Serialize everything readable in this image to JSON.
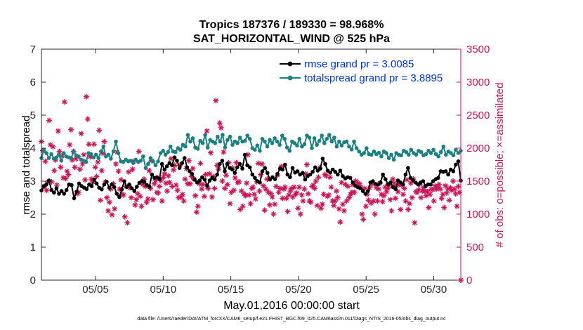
{
  "chart_data": {
    "type": "line",
    "title": "Tropics 187376 / 189330 = 98.968%",
    "subtitle": "SAT_HORIZONTAL_WIND @ 525 hPa",
    "xlabel": "May.01,2016 00:00:00 start",
    "ylabel_left": "rmse and totalspread",
    "ylabel_right": "# of obs: o=possible; ×=assimilated",
    "footer": "data file: /Users/raeder/DAI/ATM_forcXX/CAM6_setup/f.e21.FHIST_BGC.f09_025.CAM6assim.011/Diags_NTrS_2016-05/obs_diag_output.nc",
    "xlim": [
      1.0,
      32.0
    ],
    "ylim_left": [
      0,
      7
    ],
    "ylim_right": [
      0,
      3500
    ],
    "x_ticks": [
      5,
      10,
      15,
      20,
      25,
      30
    ],
    "x_tick_labels": [
      "05/05",
      "05/10",
      "05/15",
      "05/20",
      "05/25",
      "05/30"
    ],
    "y_ticks_left": [
      0,
      1,
      2,
      3,
      4,
      5,
      6,
      7
    ],
    "y_ticks_right": [
      0,
      500,
      1000,
      1500,
      2000,
      2500,
      3000,
      3500
    ],
    "legend_position": "top-right",
    "colors": {
      "rmse": "#000000",
      "spread": "#1a8080",
      "obs": "#cc1455",
      "legend_text": "#0033dd",
      "right_axis": "#cc1455"
    },
    "series": [
      {
        "name": "rmse grand pr = 3.0085",
        "axis": "left",
        "values": [
          2.72,
          2.85,
          2.9,
          3.02,
          2.73,
          2.65,
          2.78,
          2.62,
          2.7,
          2.62,
          2.73,
          2.9,
          2.88,
          2.48,
          2.68,
          2.93,
          2.85,
          2.8,
          2.76,
          2.9,
          2.85,
          3.05,
          2.93,
          2.8,
          2.75,
          2.9,
          2.98,
          2.8,
          2.9,
          2.82,
          2.62,
          2.52,
          2.75,
          3.0,
          2.82,
          2.9,
          2.78,
          2.7,
          2.83,
          2.95,
          3.0,
          2.98,
          2.88,
          2.83,
          3.2,
          3.1,
          3.12,
          3.06,
          3.52,
          3.35,
          3.45,
          3.55,
          3.48,
          3.72,
          3.62,
          3.4,
          3.55,
          3.7,
          3.42,
          3.3,
          3.22,
          3.05,
          2.96,
          3.02,
          3.12,
          3.05,
          2.86,
          3.02,
          3.1,
          3.05,
          3.2,
          3.52,
          3.62,
          3.3,
          3.52,
          3.4,
          3.35,
          3.25,
          3.42,
          3.52,
          3.38,
          3.8,
          3.48,
          3.42,
          3.2,
          3.1,
          3.0,
          2.96,
          3.3,
          3.4,
          3.25,
          3.05,
          3.12,
          3.06,
          3.22,
          3.38,
          3.35,
          3.5,
          3.2,
          3.12,
          3.4,
          3.26,
          3.3,
          3.2,
          3.25,
          3.05,
          3.15,
          3.2,
          3.28,
          3.42,
          3.32,
          3.38,
          3.68,
          3.52,
          3.32,
          3.26,
          3.35,
          3.28,
          3.2,
          3.32,
          3.15,
          3.08,
          3.12,
          3.1,
          2.96,
          2.86,
          2.82,
          2.78,
          2.7,
          2.62,
          2.7,
          2.96,
          3.0,
          2.92,
          2.9,
          2.96,
          3.2,
          3.06,
          2.9,
          2.96,
          2.82,
          2.76,
          3.02,
          2.96,
          2.9,
          3.2,
          3.4,
          3.1,
          3.02,
          2.96,
          2.9,
          2.96,
          3.0,
          2.85,
          2.9,
          2.9,
          3.0,
          3.06,
          3.1,
          3.3,
          3.28,
          3.3,
          3.2,
          3.35,
          3.3,
          3.5,
          3.6,
          3.02
        ]
      },
      {
        "name": "totalspread grand pr = 3.8895",
        "axis": "left",
        "values": [
          3.7,
          3.95,
          3.85,
          3.7,
          3.82,
          3.68,
          3.72,
          3.8,
          3.62,
          3.85,
          3.75,
          3.72,
          3.7,
          3.9,
          3.78,
          3.75,
          3.65,
          3.62,
          3.58,
          3.85,
          3.82,
          3.72,
          3.8,
          3.7,
          3.9,
          4.05,
          3.75,
          3.8,
          3.68,
          3.9,
          4.2,
          3.85,
          3.6,
          3.58,
          3.65,
          3.6,
          3.62,
          3.55,
          3.65,
          3.58,
          3.62,
          3.75,
          3.4,
          3.52,
          3.7,
          3.6,
          3.48,
          3.6,
          3.85,
          3.92,
          3.8,
          3.88,
          4.05,
          3.9,
          3.88,
          4.0,
          3.95,
          4.1,
          4.05,
          4.4,
          4.2,
          4.3,
          4.02,
          3.98,
          4.22,
          4.15,
          4.4,
          4.02,
          4.25,
          4.2,
          4.15,
          4.35,
          4.2,
          4.4,
          4.02,
          4.25,
          4.35,
          4.1,
          4.2,
          4.15,
          4.32,
          4.2,
          4.22,
          4.38,
          4.28,
          4.0,
          3.95,
          4.08,
          3.92,
          4.28,
          4.2,
          4.05,
          4.25,
          4.15,
          4.3,
          4.2,
          4.1,
          4.38,
          4.28,
          4.02,
          3.92,
          4.2,
          4.15,
          4.08,
          4.28,
          4.05,
          4.12,
          4.38,
          4.32,
          4.0,
          4.3,
          4.1,
          4.22,
          4.38,
          4.15,
          4.28,
          4.4,
          4.2,
          4.32,
          4.05,
          4.2,
          4.08,
          4.18,
          4.2,
          4.05,
          3.96,
          4.2,
          4.0,
          3.9,
          3.8,
          3.85,
          4.0,
          3.82,
          3.8,
          3.9,
          3.82,
          3.86,
          3.75,
          3.9,
          3.85,
          3.7,
          3.8,
          3.65,
          3.85,
          3.8,
          3.78,
          3.92,
          3.88,
          3.8,
          3.95,
          3.85,
          3.8,
          3.92,
          3.88,
          3.78,
          3.82,
          3.92,
          3.85,
          3.95,
          3.82,
          3.75,
          3.88,
          4.05,
          3.8,
          3.9,
          3.85,
          3.78,
          3.95,
          3.85,
          3.92
        ]
      }
    ],
    "obs_series": {
      "name": "# of obs",
      "axis": "right",
      "marker": "asterisk",
      "values": [
        2100,
        1960,
        1420,
        1800,
        1360,
        1490,
        2420,
        2050,
        1490,
        2020,
        1660,
        1820,
        1440,
        2260,
        1950,
        1710,
        1880,
        1550,
        2700,
        1540,
        1650,
        1600,
        2050,
        2280,
        1820,
        1950,
        1710,
        1840,
        1310,
        1330,
        1680,
        2220,
        1760,
        1900,
        1520,
        2780,
        2440,
        2060,
        1870,
        1530,
        1490,
        2060,
        1710,
        1570,
        1790,
        2270,
        1210,
        1660,
        1920,
        2100,
        1490,
        1250,
        1050,
        1180,
        1380,
        990,
        1460,
        1080,
        1760,
        1940,
        1650,
        1380,
        1520,
        1300,
        1290,
        960,
        1420,
        870,
        1640,
        1400,
        1250,
        1680,
        1800,
        1140,
        1220,
        1310,
        1950,
        1270,
        1120,
        1450,
        1530,
        1420,
        1180,
        1230,
        1660,
        1390,
        1810,
        1220,
        1460,
        1510,
        1330,
        1320,
        1420,
        1510,
        1200,
        1560,
        1610,
        1470,
        1350,
        1580,
        1480,
        1840,
        1420,
        1670,
        1740,
        1440,
        1360,
        1250,
        1740,
        1260,
        1300,
        1200,
        1530,
        1690,
        1460,
        1810,
        1460,
        1570,
        1690,
        1530,
        1280,
        1030,
        1120,
        1460,
        1770,
        1380,
        1450,
        1270,
        1600,
        2260,
        1390,
        1610,
        1930,
        1260,
        1570,
        1390,
        2720,
        1740,
        1680,
        2380,
        2310,
        1500,
        1940,
        1390,
        1590,
        1450,
        1780,
        1160,
        1330,
        1700,
        1360,
        1550,
        1780,
        1480,
        1490,
        1070,
        1350,
        1120,
        1310,
        1280,
        1470,
        1900,
        1290,
        1160,
        1390,
        1410,
        1300,
        1230,
        1490,
        1770,
        1350,
        1600,
        1760,
        1430,
        1060,
        1380,
        1530,
        1330,
        1140,
        1310,
        1260,
        1000,
        1150,
        1420,
        1590,
        1330,
        1390,
        1720,
        1240,
        1380,
        1410,
        1240,
        1040,
        1290,
        1350,
        1390,
        1260,
        1410,
        1300,
        1320,
        1090,
        1410,
        1000,
        1290,
        1200,
        1380,
        1610,
        1750,
        1310,
        1200,
        1180,
        1420,
        1440,
        1390,
        1500,
        1130,
        1560,
        1700,
        1090,
        1150,
        1300,
        1600,
        1580,
        1270,
        1290,
        1560,
        1410,
        1200,
        1130,
        1200,
        1350,
        1250,
        1080,
        880,
        1480,
        1150,
        1050,
        1450,
        1200,
        1420,
        1250,
        1300,
        1330,
        1450,
        1330,
        1500,
        1480,
        1420,
        1460,
        1410,
        1000,
        920,
        1390,
        1120,
        1300,
        1210,
        1400,
        1170,
        1460,
        1200,
        1000,
        1400,
        1200,
        1380,
        1470,
        1300,
        1190,
        1280,
        1410,
        1340,
        1390,
        1430,
        1220,
        1050,
        1530,
        1470,
        1240,
        1430,
        1340,
        1450,
        1070,
        1440,
        1300,
        1390,
        1200,
        1520,
        1070,
        1160,
        1470,
        1250,
        1530,
        870,
        1340,
        1330,
        1370,
        1450,
        1250,
        1350,
        1400,
        1350,
        1280,
        1340,
        1100,
        1300,
        1380,
        1370,
        1200,
        1430,
        1380,
        1410,
        1450,
        1380,
        1240,
        1300,
        1100,
        1430,
        1320,
        1380,
        1210,
        1400,
        1360,
        1500,
        1380,
        1310,
        1120,
        1420,
        1330,
        0
      ]
    }
  }
}
